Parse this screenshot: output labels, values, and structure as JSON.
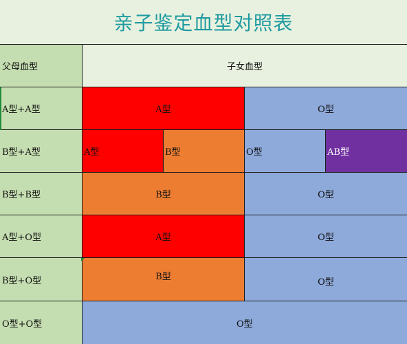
{
  "title": "亲子鉴定血型对照表",
  "header": {
    "parent_label": "父母血型",
    "child_label": "子女血型"
  },
  "rows": [
    {
      "parents": "A型+A型",
      "children": [
        "A型",
        "O型"
      ]
    },
    {
      "parents": "B型+A型",
      "children": [
        "A型",
        "B型",
        "O型",
        "AB型"
      ]
    },
    {
      "parents": "B型+B型",
      "children": [
        "B型",
        "O型"
      ]
    },
    {
      "parents": "A型+O型",
      "children": [
        "A型",
        "O型"
      ]
    },
    {
      "parents": "B型+O型",
      "children": [
        "B型",
        "O型"
      ]
    },
    {
      "parents": "O型+O型",
      "children": [
        "O型"
      ]
    }
  ],
  "colors": {
    "A型": "#ff0000",
    "B型": "#ed7d31",
    "O型": "#8eaadb",
    "AB型": "#7030a0",
    "parent_column": "#c5deb1",
    "sheet_background": "#e8f1df",
    "title_text": "#1e9aa0"
  }
}
